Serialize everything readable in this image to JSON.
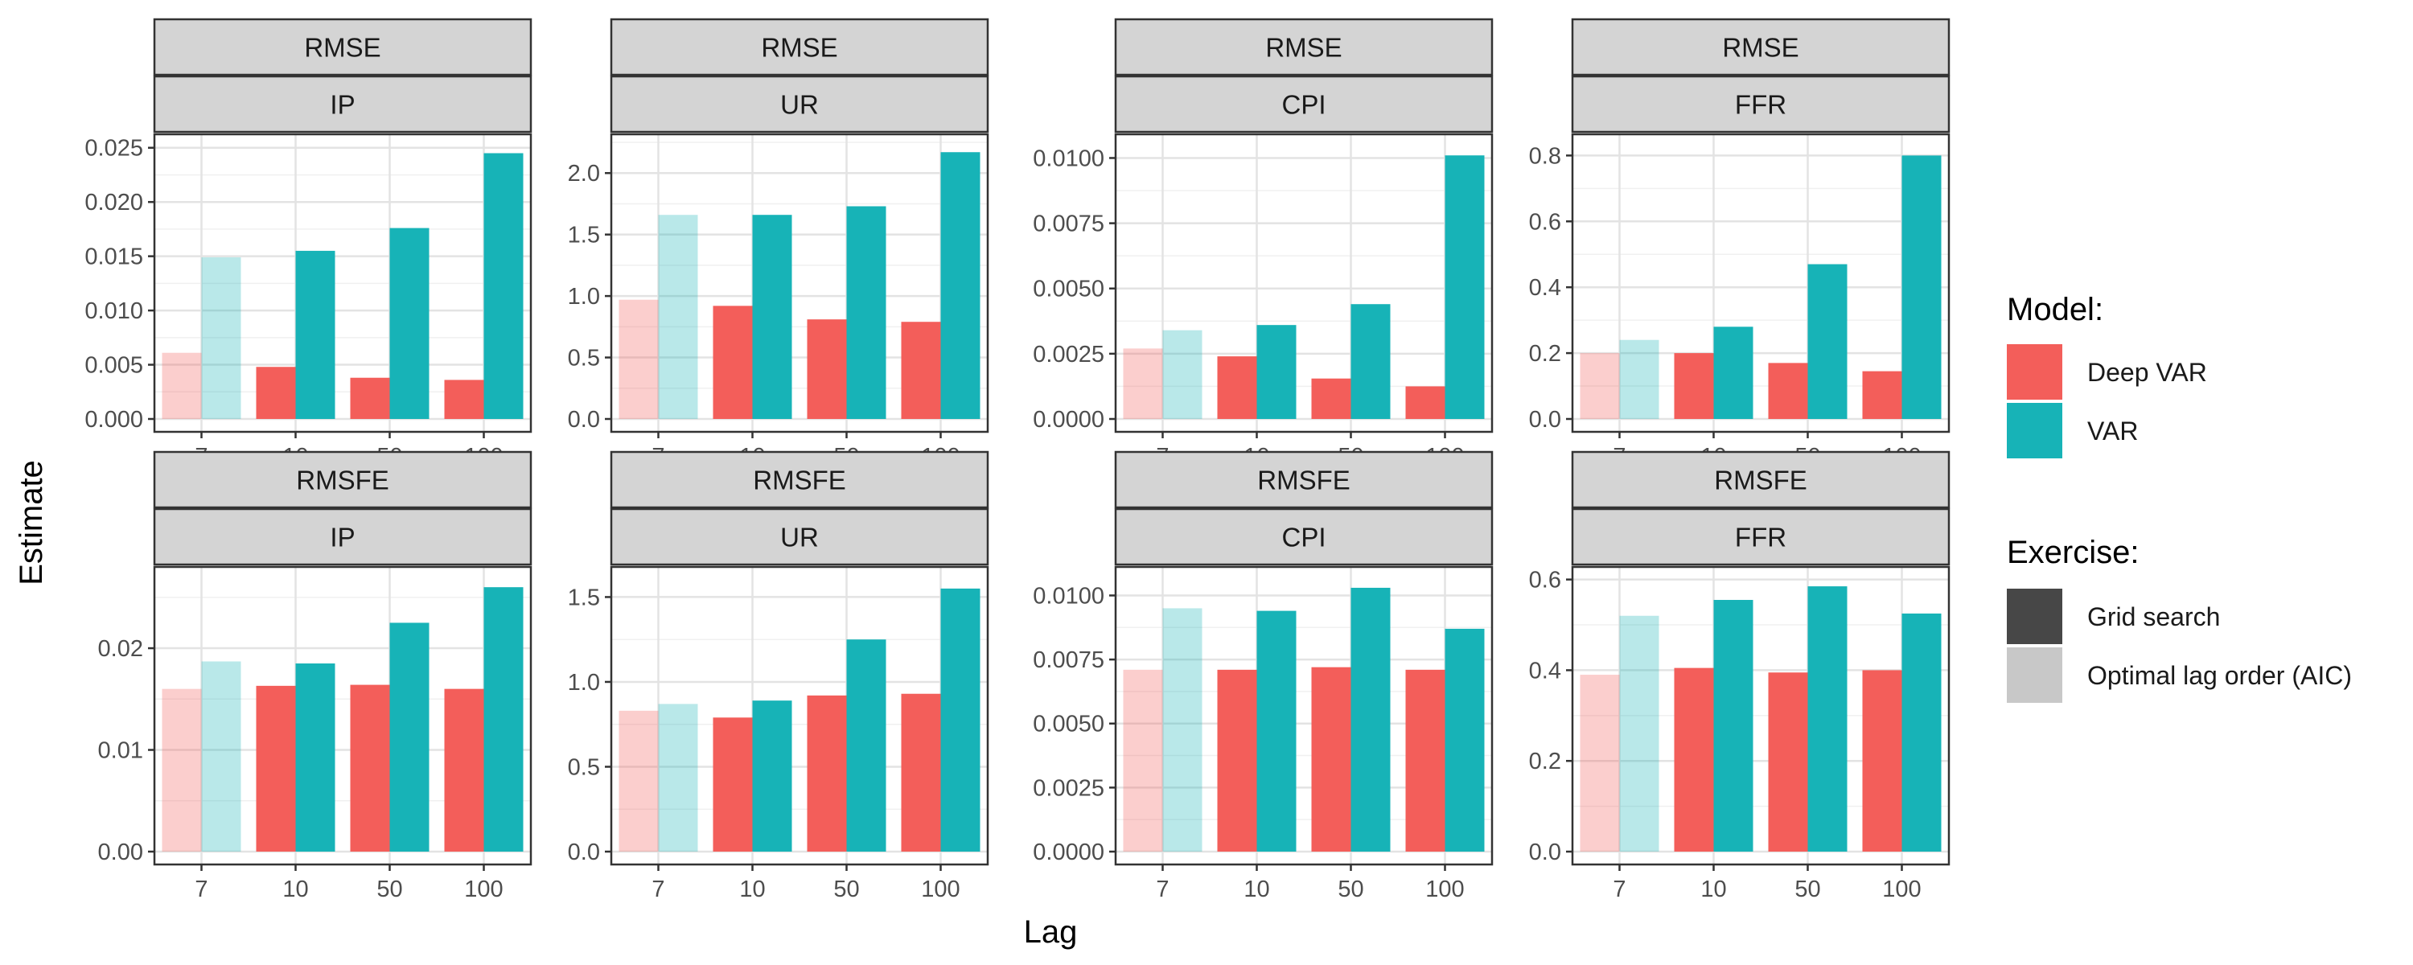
{
  "chart_data": {
    "type": "bar",
    "x_label": "Lag",
    "y_label": "Estimate",
    "categories": [
      "7",
      "10",
      "50",
      "100"
    ],
    "series_names": [
      "Deep VAR",
      "VAR"
    ],
    "colors": {
      "Deep VAR": "#F35E5A",
      "VAR": "#17B3B7"
    },
    "faded_category": "7",
    "legend": {
      "position": "right",
      "model_title": "Model:",
      "model_items": [
        {
          "label": "Deep VAR",
          "color": "#F35E5A"
        },
        {
          "label": "VAR",
          "color": "#17B3B7"
        }
      ],
      "exercise_title": "Exercise:",
      "exercise_items": [
        {
          "label": "Grid search",
          "color": "#474747"
        },
        {
          "label": "Optimal lag order (AIC)",
          "color": "#C8C8C8"
        }
      ]
    },
    "panels": [
      {
        "metric": "RMSE",
        "variable": "IP",
        "ylim": [
          0,
          0.0255
        ],
        "yticks": [
          0,
          0.005,
          0.01,
          0.015,
          0.02,
          0.025
        ],
        "ytick_labels": [
          "0.000",
          "0.005",
          "0.010",
          "0.015",
          "0.020",
          "0.025"
        ],
        "series": [
          {
            "name": "Deep VAR",
            "values": [
              0.0061,
              0.0048,
              0.0038,
              0.0036
            ]
          },
          {
            "name": "VAR",
            "values": [
              0.0149,
              0.0155,
              0.0176,
              0.0245
            ]
          }
        ]
      },
      {
        "metric": "RMSE",
        "variable": "UR",
        "ylim": [
          0,
          2.25
        ],
        "yticks": [
          0,
          0.5,
          1,
          1.5,
          2
        ],
        "ytick_labels": [
          "0.0",
          "0.5",
          "1.0",
          "1.5",
          "2.0"
        ],
        "series": [
          {
            "name": "Deep VAR",
            "values": [
              0.97,
              0.92,
              0.81,
              0.79
            ]
          },
          {
            "name": "VAR",
            "values": [
              1.66,
              1.66,
              1.73,
              2.17
            ]
          }
        ]
      },
      {
        "metric": "RMSE",
        "variable": "CPI",
        "ylim": [
          0,
          0.0106
        ],
        "yticks": [
          0,
          0.0025,
          0.005,
          0.0075,
          0.01
        ],
        "ytick_labels": [
          "0.0000",
          "0.0025",
          "0.0050",
          "0.0075",
          "0.0100"
        ],
        "series": [
          {
            "name": "Deep VAR",
            "values": [
              0.0027,
              0.0024,
              0.00155,
              0.00125
            ]
          },
          {
            "name": "VAR",
            "values": [
              0.0034,
              0.0036,
              0.0044,
              0.0101
            ]
          }
        ]
      },
      {
        "metric": "RMSE",
        "variable": "FFR",
        "ylim": [
          0,
          0.84
        ],
        "yticks": [
          0,
          0.2,
          0.4,
          0.6,
          0.8
        ],
        "ytick_labels": [
          "0.0",
          "0.2",
          "0.4",
          "0.6",
          "0.8"
        ],
        "series": [
          {
            "name": "Deep VAR",
            "values": [
              0.2,
              0.2,
              0.17,
              0.145
            ]
          },
          {
            "name": "VAR",
            "values": [
              0.24,
              0.28,
              0.47,
              0.8
            ]
          }
        ]
      },
      {
        "metric": "RMSFE",
        "variable": "IP",
        "ylim": [
          0,
          0.0272
        ],
        "yticks": [
          0,
          0.01,
          0.02
        ],
        "ytick_labels": [
          "0.00",
          "0.01",
          "0.02"
        ],
        "series": [
          {
            "name": "Deep VAR",
            "values": [
              0.016,
              0.0163,
              0.0164,
              0.016
            ]
          },
          {
            "name": "VAR",
            "values": [
              0.0187,
              0.0185,
              0.0225,
              0.026
            ]
          }
        ]
      },
      {
        "metric": "RMSFE",
        "variable": "UR",
        "ylim": [
          0,
          1.63
        ],
        "yticks": [
          0,
          0.5,
          1,
          1.5
        ],
        "ytick_labels": [
          "0.0",
          "0.5",
          "1.0",
          "1.5"
        ],
        "series": [
          {
            "name": "Deep VAR",
            "values": [
              0.83,
              0.79,
              0.92,
              0.93
            ]
          },
          {
            "name": "VAR",
            "values": [
              0.87,
              0.89,
              1.25,
              1.55
            ]
          }
        ]
      },
      {
        "metric": "RMSFE",
        "variable": "CPI",
        "ylim": [
          0,
          0.0108
        ],
        "yticks": [
          0,
          0.0025,
          0.005,
          0.0075,
          0.01
        ],
        "ytick_labels": [
          "0.0000",
          "0.0025",
          "0.0050",
          "0.0075",
          "0.0100"
        ],
        "series": [
          {
            "name": "Deep VAR",
            "values": [
              0.0071,
              0.0071,
              0.0072,
              0.0071
            ]
          },
          {
            "name": "VAR",
            "values": [
              0.0095,
              0.0094,
              0.0103,
              0.0087
            ]
          }
        ]
      },
      {
        "metric": "RMSFE",
        "variable": "FFR",
        "ylim": [
          0,
          0.61
        ],
        "yticks": [
          0,
          0.2,
          0.4,
          0.6
        ],
        "ytick_labels": [
          "0.0",
          "0.2",
          "0.4",
          "0.6"
        ],
        "series": [
          {
            "name": "Deep VAR",
            "values": [
              0.39,
              0.405,
              0.395,
              0.4
            ]
          },
          {
            "name": "VAR",
            "values": [
              0.52,
              0.555,
              0.585,
              0.525
            ]
          }
        ]
      }
    ]
  }
}
